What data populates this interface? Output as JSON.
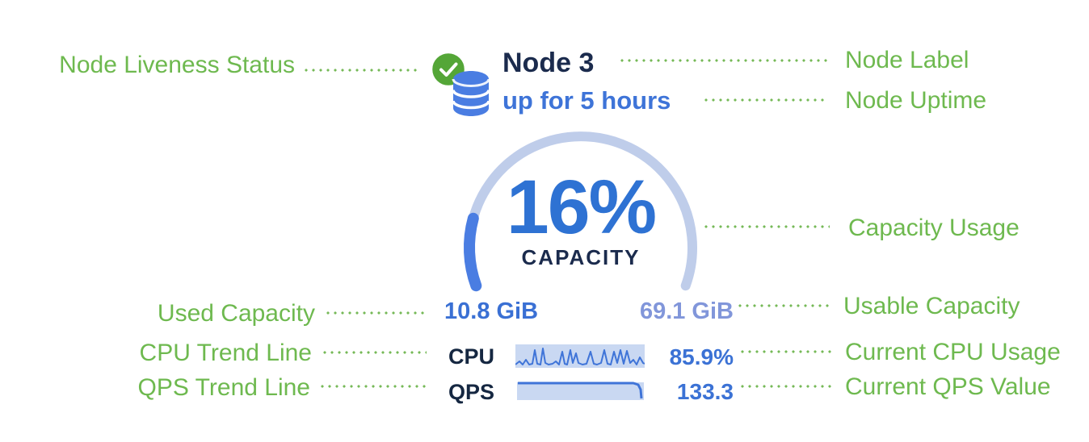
{
  "diagram": {
    "annotations_left": [
      {
        "label": "Node Liveness Status"
      },
      {
        "label": "Used Capacity"
      },
      {
        "label": "CPU Trend Line"
      },
      {
        "label": "QPS Trend Line"
      }
    ],
    "annotations_right": [
      {
        "label": "Node Label"
      },
      {
        "label": "Node Uptime"
      },
      {
        "label": "Capacity Usage"
      },
      {
        "label": "Usable Capacity"
      },
      {
        "label": "Current CPU Usage"
      },
      {
        "label": "Current QPS Value"
      }
    ]
  },
  "node_widget": {
    "label": "Node 3",
    "uptime": "up for 5 hours",
    "capacity_percent": "16%",
    "capacity_caption": "CAPACITY",
    "used_capacity": "10.8 GiB",
    "usable_capacity": "69.1 GiB",
    "cpu_label": "CPU",
    "cpu_value": "85.9%",
    "qps_label": "QPS",
    "qps_value": "133.3"
  },
  "icons": {
    "liveness": "check-circle-icon",
    "node": "database-icon"
  },
  "colors": {
    "annotation_green": "#6eb94f",
    "leader_green": "#76b957",
    "dark_navy": "#1b2b4d",
    "accent_blue": "#4a7de2",
    "uptime_blue": "#3e74d8",
    "pct_blue": "#2e72d3",
    "value_blue": "#3b72d5",
    "used_blue": "#3a70d4",
    "usable_blue": "#8196da",
    "light_arc": "#bfcdea",
    "spark_bg": "#c9d8f2",
    "spark_line": "#3f74d8",
    "badge_green": "#54a637"
  }
}
